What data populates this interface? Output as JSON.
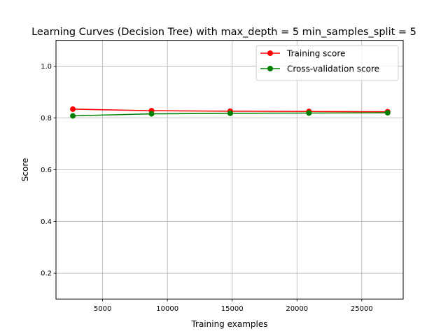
{
  "chart_data": {
    "type": "line",
    "title": "Learning Curves (Decision Tree) with max_depth = 5 min_samples_split = 5",
    "xlabel": "Training examples",
    "ylabel": "Score",
    "xlim": [
      1400,
      28200
    ],
    "ylim": [
      0.1,
      1.1
    ],
    "xticks": [
      5000,
      10000,
      15000,
      20000,
      25000
    ],
    "yticks": [
      0.2,
      0.4,
      0.6,
      0.8,
      1.0
    ],
    "grid": true,
    "legend_position": "top-right",
    "x": [
      2700,
      8775,
      14850,
      20925,
      27000
    ],
    "series": [
      {
        "name": "Training score",
        "color": "#ff0000",
        "marker": "circle",
        "values": [
          0.834,
          0.828,
          0.826,
          0.825,
          0.824
        ],
        "band": [
          [
            0.83,
            0.838
          ],
          [
            0.826,
            0.83
          ],
          [
            0.824,
            0.828
          ],
          [
            0.823,
            0.827
          ],
          [
            0.822,
            0.826
          ]
        ]
      },
      {
        "name": "Cross-validation score",
        "color": "#008000",
        "marker": "circle",
        "values": [
          0.808,
          0.816,
          0.818,
          0.819,
          0.82
        ],
        "band": [
          [
            0.806,
            0.81
          ],
          [
            0.814,
            0.818
          ],
          [
            0.816,
            0.82
          ],
          [
            0.817,
            0.821
          ],
          [
            0.818,
            0.822
          ]
        ]
      }
    ]
  }
}
